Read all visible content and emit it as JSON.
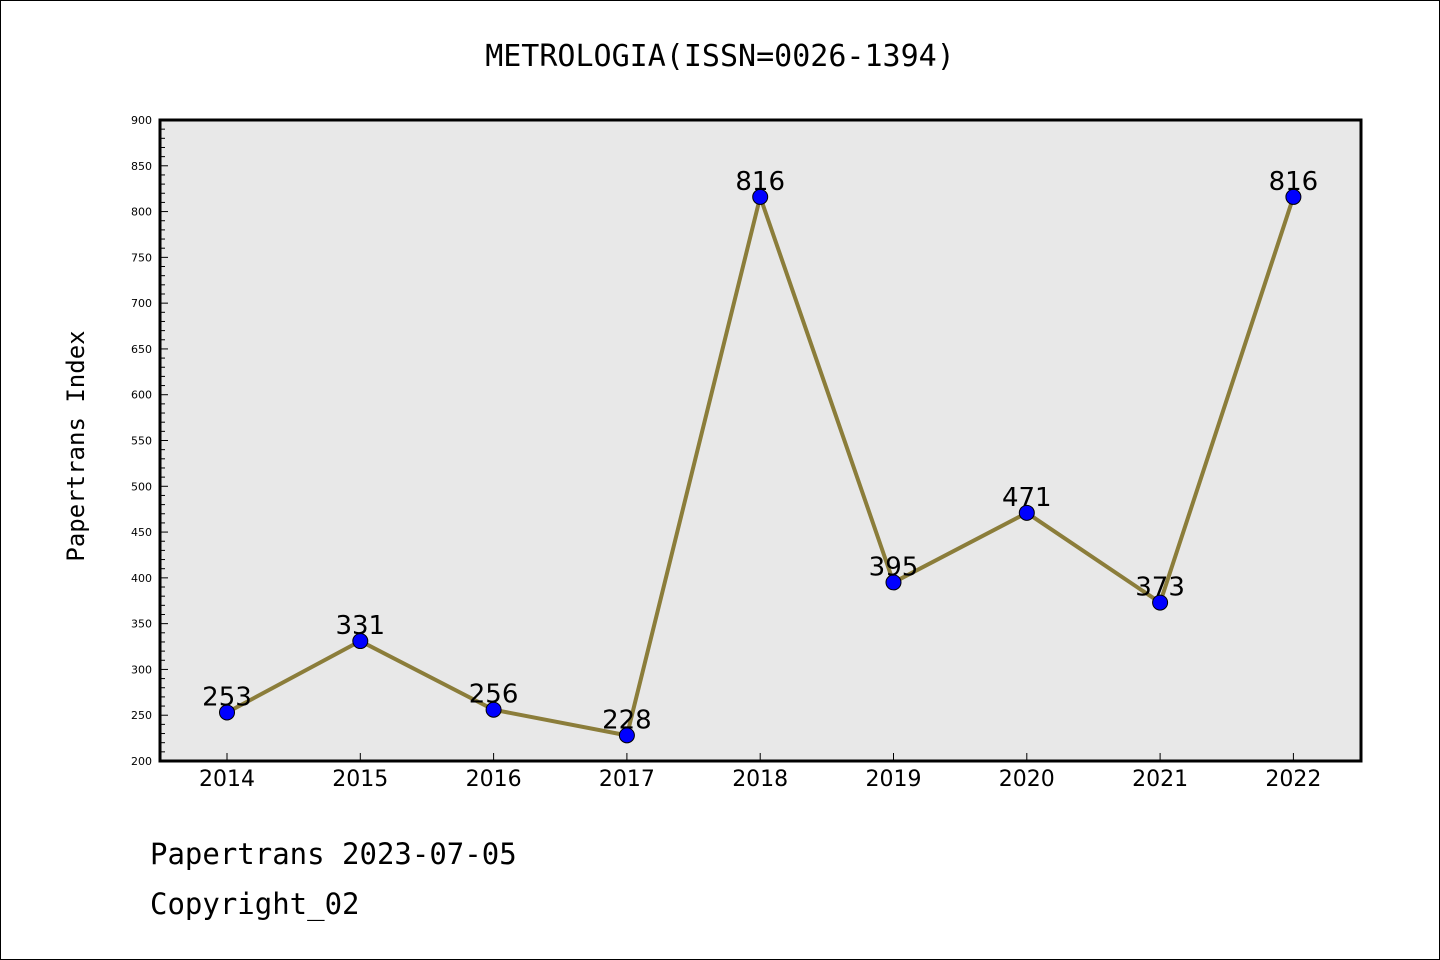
{
  "chart_data": {
    "type": "line",
    "title": "METROLOGIA(ISSN=0026-1394)",
    "xlabel": "",
    "ylabel": "Papertrans Index",
    "categories": [
      "2014",
      "2015",
      "2016",
      "2017",
      "2018",
      "2019",
      "2020",
      "2021",
      "2022"
    ],
    "series": [
      {
        "values": [
          253,
          331,
          256,
          228,
          816,
          395,
          471,
          373,
          816
        ],
        "line_color": "#8B7D3A",
        "marker_color": "#0000FF"
      }
    ],
    "data_labels": [
      "253",
      "331",
      "256",
      "228",
      "816",
      "395",
      "471",
      "373",
      "816"
    ],
    "ylim": [
      200,
      900
    ],
    "yticks": [
      "200",
      "250",
      "300",
      "350",
      "400",
      "450",
      "500",
      "550",
      "600",
      "650",
      "700",
      "750",
      "800",
      "850",
      "900"
    ],
    "plot_background": "#E8E8E8",
    "grid": false,
    "legend": "none"
  },
  "footer": {
    "line1": "Papertrans 2023-07-05",
    "line2": "Copyright_02"
  }
}
